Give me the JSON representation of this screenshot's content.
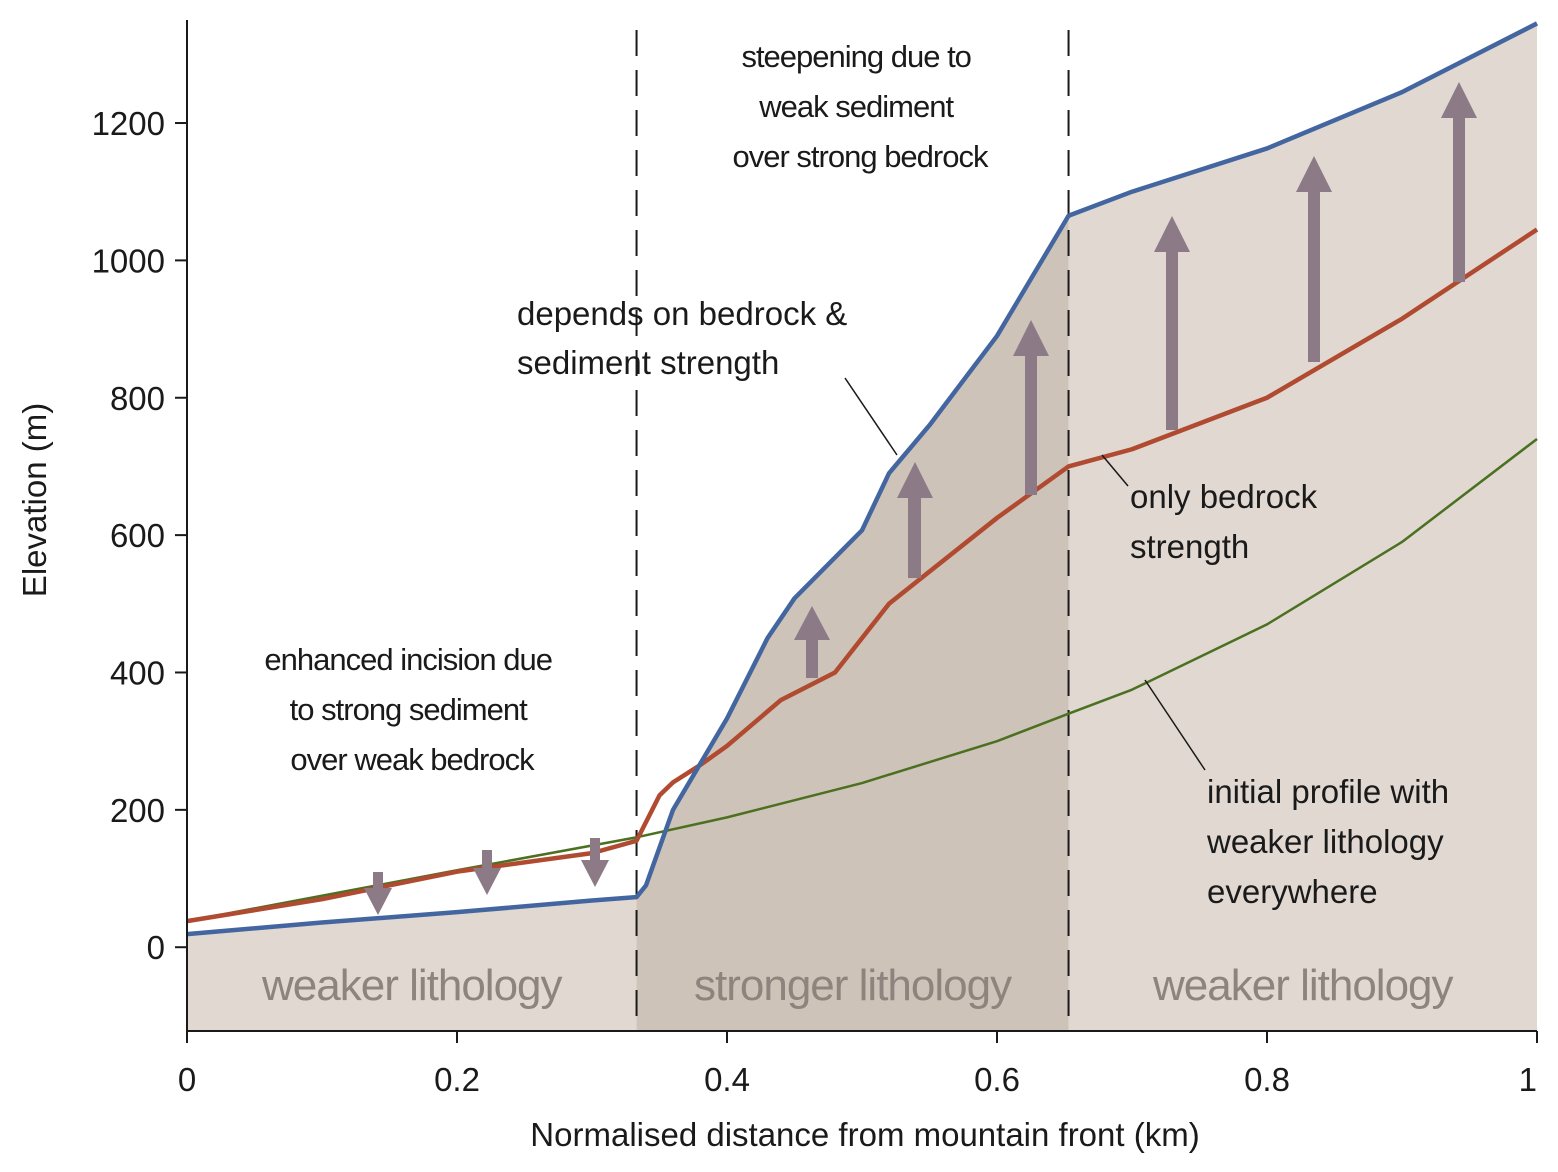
{
  "chart_data": {
    "type": "line",
    "xlabel": "Normalised distance from mountain front (km)",
    "ylabel": "Elevation (m)",
    "xlim": [
      0,
      1
    ],
    "ylim": [
      -122,
      1350
    ],
    "xticks": [
      0,
      0.2,
      0.4,
      0.6,
      0.8,
      1
    ],
    "yticks": [
      0,
      200,
      400,
      600,
      800,
      1000,
      1200
    ],
    "regions": [
      {
        "label": "weaker lithology",
        "x": [
          0,
          0.333
        ],
        "color": "#e0d8d1"
      },
      {
        "label": "stronger lithology",
        "x": [
          0.333,
          0.653
        ],
        "color": "#cec3b8"
      },
      {
        "label": "weaker lithology",
        "x": [
          0.653,
          1
        ],
        "color": "#e0d8d1"
      }
    ],
    "series": [
      {
        "name": "depends on bedrock & sediment strength",
        "color": "#4466a0",
        "x": [
          0,
          0.1,
          0.2,
          0.3,
          0.333,
          0.34,
          0.36,
          0.4,
          0.43,
          0.45,
          0.5,
          0.52,
          0.55,
          0.6,
          0.653,
          0.7,
          0.8,
          0.9,
          1
        ],
        "values": [
          19,
          36,
          51,
          68,
          73,
          90,
          200,
          333,
          450,
          508,
          607,
          690,
          760,
          890,
          1065,
          1100,
          1163,
          1245,
          1345
        ]
      },
      {
        "name": "only bedrock strength",
        "color": "#b04a30",
        "x": [
          0,
          0.1,
          0.2,
          0.3,
          0.333,
          0.35,
          0.36,
          0.38,
          0.4,
          0.44,
          0.48,
          0.52,
          0.6,
          0.653,
          0.7,
          0.8,
          0.9,
          1
        ],
        "values": [
          38,
          70,
          110,
          137,
          155,
          221,
          240,
          265,
          293,
          360,
          400,
          500,
          625,
          700,
          725,
          800,
          915,
          1045
        ]
      },
      {
        "name": "initial profile with weaker lithology everywhere",
        "color": "#4a7020",
        "x": [
          0,
          0.2,
          0.333,
          0.4,
          0.5,
          0.6,
          0.653,
          0.7,
          0.8,
          0.9,
          1
        ],
        "values": [
          38,
          112,
          160,
          189,
          239,
          300,
          340,
          375,
          470,
          590,
          740
        ]
      }
    ],
    "annotations": {
      "steepening": [
        "steepening due to",
        "weak sediment",
        "over strong bedrock"
      ],
      "incision": [
        "enhanced incision due",
        "to strong sediment",
        "over weak bedrock"
      ],
      "depends": [
        "depends on bedrock &",
        "sediment strength"
      ],
      "bedrock": [
        "only bedrock",
        "strength"
      ],
      "initial": [
        "initial profile with",
        "weaker lithology",
        "everywhere"
      ]
    }
  }
}
